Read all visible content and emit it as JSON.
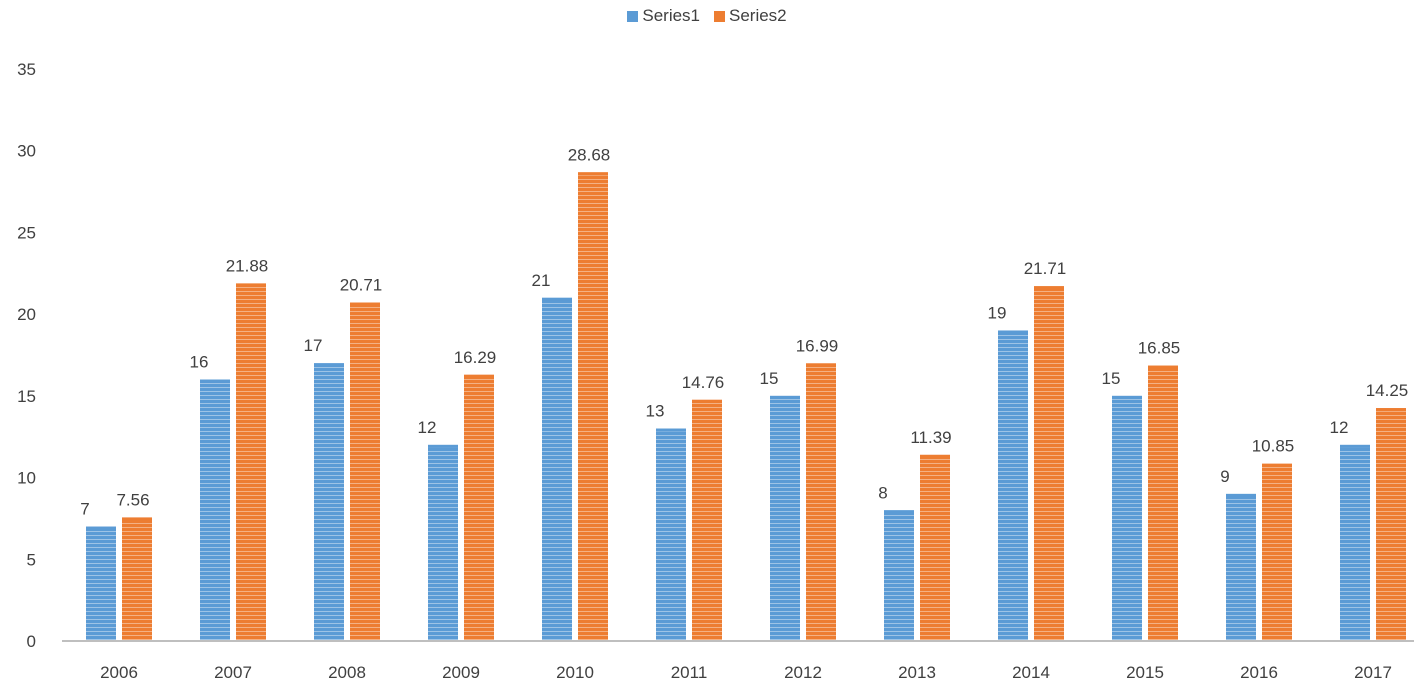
{
  "chart_data": {
    "type": "bar",
    "categories": [
      "2006",
      "2007",
      "2008",
      "2009",
      "2010",
      "2011",
      "2012",
      "2013",
      "2014",
      "2015",
      "2016",
      "2017"
    ],
    "series": [
      {
        "name": "Series1",
        "color": "#5B9BD5",
        "values": [
          7,
          16,
          17,
          12,
          21,
          13,
          15,
          8,
          19,
          15,
          9,
          12
        ],
        "labels": [
          "7",
          "16",
          "17",
          "12",
          "21",
          "13",
          "15",
          "8",
          "19",
          "15",
          "9",
          "12"
        ]
      },
      {
        "name": "Series2",
        "color": "#ED7D31",
        "values": [
          7.56,
          21.88,
          20.71,
          16.29,
          28.68,
          14.76,
          16.99,
          11.39,
          21.71,
          16.85,
          10.85,
          14.25
        ],
        "labels": [
          "7.56",
          "21.88",
          "20.71",
          "16.29",
          "28.68",
          "14.76",
          "16.99",
          "11.39",
          "21.71",
          "16.85",
          "10.85",
          "14.25"
        ]
      }
    ],
    "ylim": [
      0,
      35
    ],
    "yticks": [
      "0",
      "5",
      "10",
      "15",
      "20",
      "25",
      "30",
      "35"
    ],
    "title": "",
    "xlabel": "",
    "ylabel": "",
    "legend": "top-center",
    "grid": false
  }
}
